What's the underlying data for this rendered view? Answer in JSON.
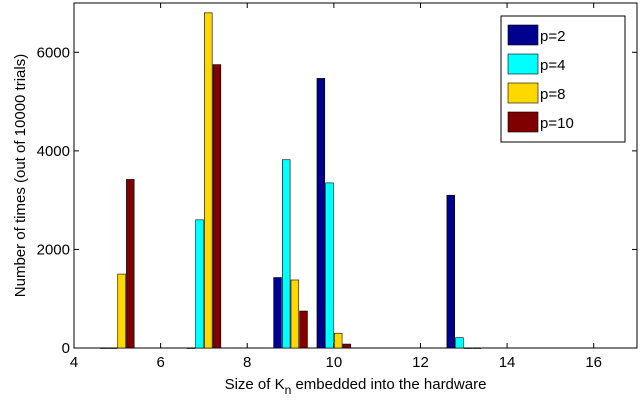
{
  "chart_data": {
    "type": "bar",
    "xlabel_main": "Size of K",
    "xlabel_sub": "n",
    "xlabel_rest": " embedded into the hardware",
    "ylabel": "Number of times (out of 10000 trials)",
    "xlim": [
      4,
      17
    ],
    "ylim": [
      0,
      7000
    ],
    "xticks": [
      4,
      6,
      8,
      10,
      12,
      14,
      16
    ],
    "yticks": [
      0,
      2000,
      4000,
      6000
    ],
    "categories": [
      5,
      7,
      9,
      10,
      13
    ],
    "series": [
      {
        "name": "p=2",
        "color": "#00008f",
        "values": [
          0,
          0,
          1430,
          5470,
          3100
        ]
      },
      {
        "name": "p=4",
        "color": "#00ffff",
        "values": [
          0,
          2600,
          3820,
          3350,
          210
        ]
      },
      {
        "name": "p=8",
        "color": "#ffd800",
        "values": [
          1500,
          6800,
          1380,
          300,
          0
        ]
      },
      {
        "name": "p=10",
        "color": "#800000",
        "values": [
          3420,
          5750,
          750,
          80,
          0
        ]
      }
    ],
    "legend_position": "top-right",
    "grid": false
  }
}
